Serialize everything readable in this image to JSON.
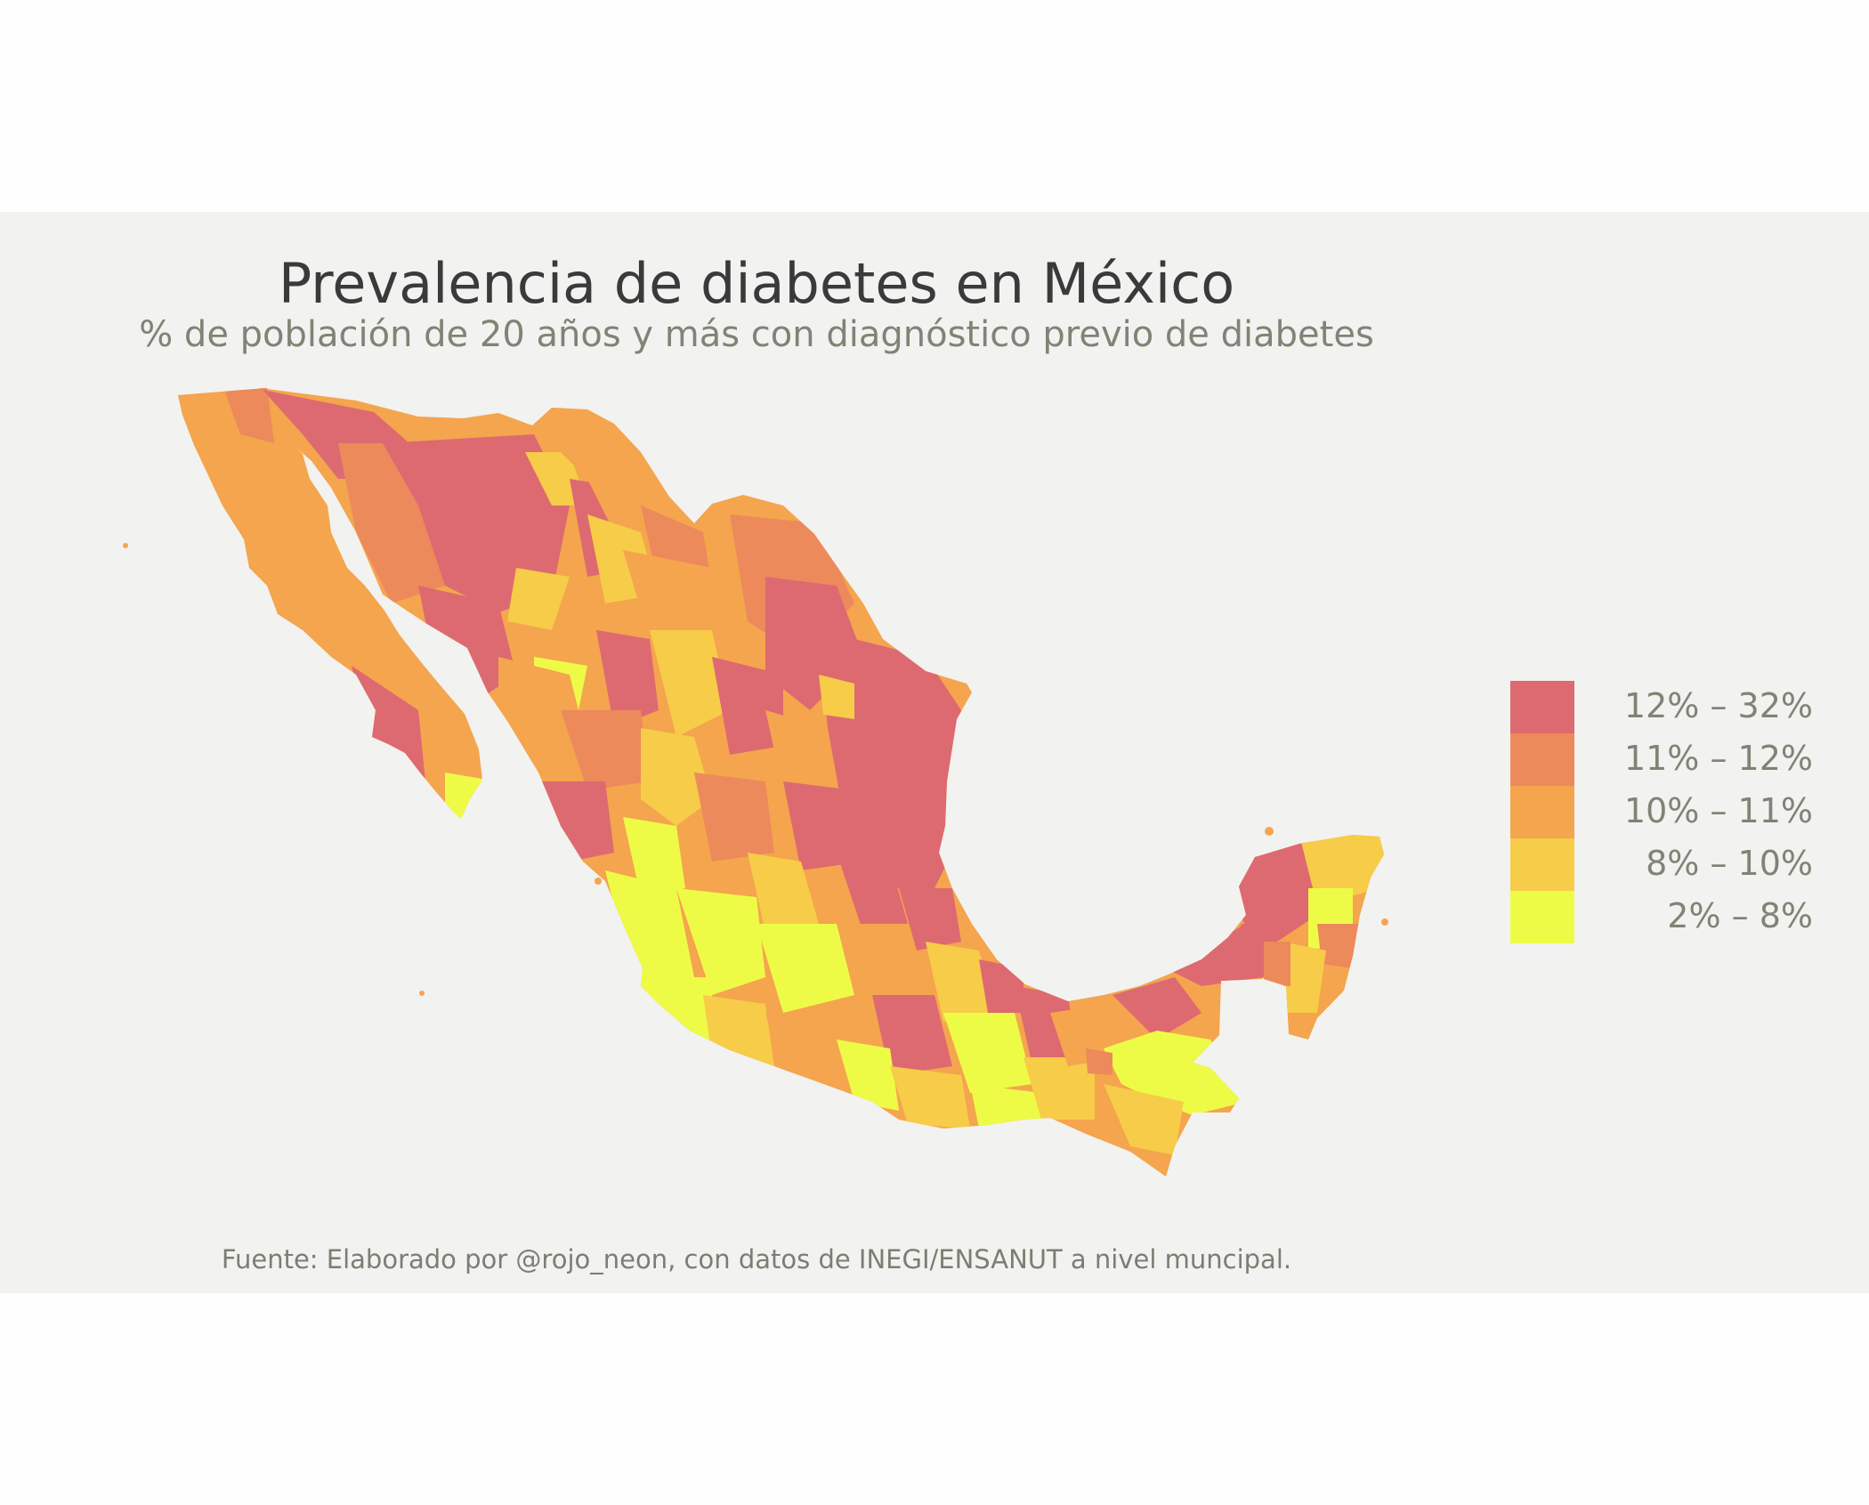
{
  "title": "Prevalencia de diabetes en México",
  "subtitle": "% de población de 20 años y más con diagnóstico previo de diabetes",
  "caption": "Fuente: Elaborado por @rojo_neon, con datos de INEGI/ENSANUT a nivel muncipal.",
  "legend": {
    "items": [
      {
        "label": "12% – 32%",
        "color": "#dd6a70"
      },
      {
        "label": "11% – 12%",
        "color": "#ec8a5c"
      },
      {
        "label": "10% – 11%",
        "color": "#f4a54e"
      },
      {
        "label": "8% – 10%",
        "color": "#f6cc48"
      },
      {
        "label": "2% – 8%",
        "color": "#eefb46"
      }
    ]
  },
  "colors": {
    "background": "#f2f2f0",
    "title": "#3a3a3a",
    "subtitle": "#828275"
  }
}
